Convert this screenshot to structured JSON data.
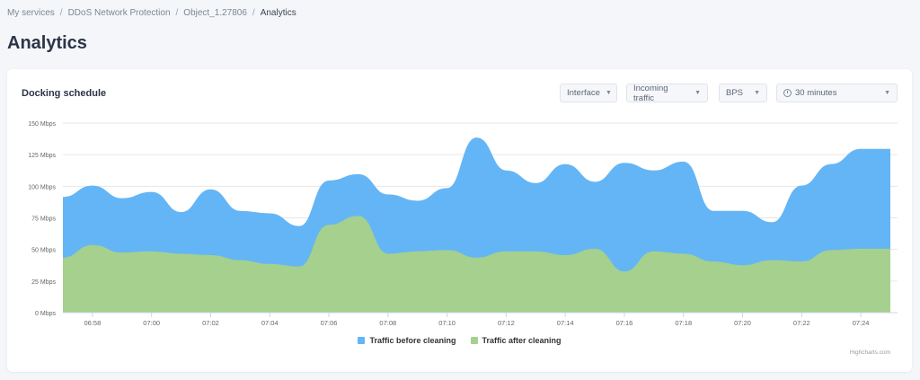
{
  "breadcrumb": {
    "items": [
      "My services",
      "DDoS Network Protection",
      "Object_1.27806"
    ],
    "current": "Analytics",
    "separator": "/"
  },
  "page_title": "Analytics",
  "card": {
    "title": "Docking schedule",
    "filters": {
      "interface": "Interface",
      "traffic": "Incoming traffic",
      "unit": "BPS",
      "period": "30 minutes"
    }
  },
  "chart_data": {
    "type": "area",
    "title": "",
    "xlabel": "",
    "ylabel": "",
    "ylim": [
      0,
      150
    ],
    "y_ticks": [
      "0 Mbps",
      "25 Mbps",
      "50 Mbps",
      "75 Mbps",
      "100 Mbps",
      "125 Mbps",
      "150 Mbps"
    ],
    "x_ticks": [
      "06:58",
      "07:00",
      "07:02",
      "07:04",
      "07:06",
      "07:08",
      "07:10",
      "07:12",
      "07:14",
      "07:16",
      "07:18",
      "07:20",
      "07:22",
      "07:24"
    ],
    "x": [
      "06:57",
      "06:58",
      "06:59",
      "07:00",
      "07:01",
      "07:02",
      "07:03",
      "07:04",
      "07:05",
      "07:06",
      "07:07",
      "07:08",
      "07:09",
      "07:10",
      "07:11",
      "07:12",
      "07:13",
      "07:14",
      "07:15",
      "07:16",
      "07:17",
      "07:18",
      "07:19",
      "07:20",
      "07:21",
      "07:22",
      "07:23",
      "07:24",
      "07:25"
    ],
    "series": [
      {
        "name": "Traffic before cleaning",
        "color": "#64b5f6",
        "values": [
          91,
          100,
          90,
          95,
          79,
          97,
          80,
          78,
          68,
          104,
          109,
          93,
          88,
          98,
          138,
          112,
          102,
          117,
          103,
          118,
          112,
          119,
          80,
          80,
          71,
          100,
          117,
          129,
          129
        ]
      },
      {
        "name": "Traffic after cleaning",
        "color": "#a5d08d",
        "values": [
          43,
          53,
          47,
          48,
          46,
          45,
          41,
          38,
          36,
          69,
          76,
          46,
          48,
          49,
          43,
          48,
          48,
          45,
          50,
          32,
          48,
          46,
          40,
          37,
          41,
          40,
          49,
          50,
          50
        ]
      }
    ],
    "grid": true,
    "legend_position": "bottom-center",
    "credits": "Highcharts.com"
  }
}
